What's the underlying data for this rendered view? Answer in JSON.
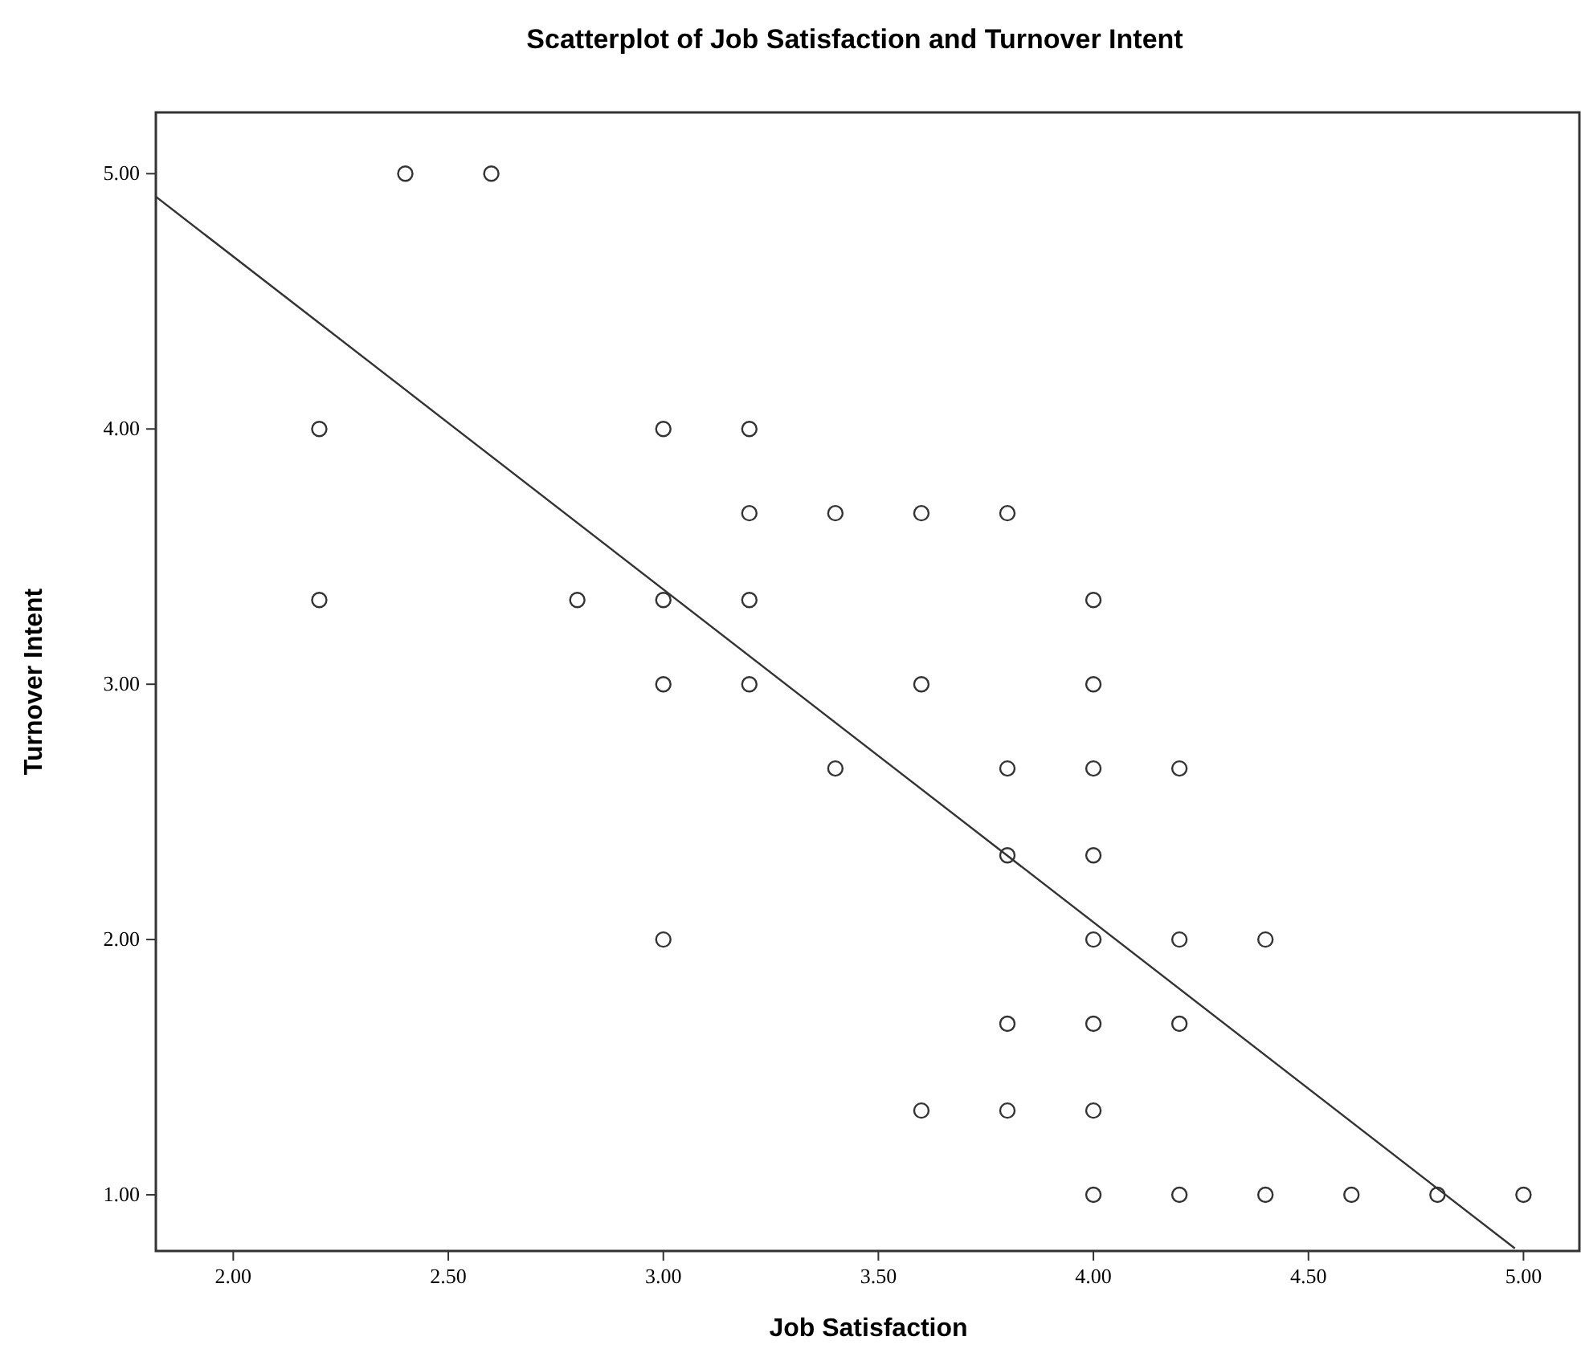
{
  "chart_data": {
    "type": "scatter",
    "title": "Scatterplot of Job Satisfaction and Turnover Intent",
    "xlabel": "Job Satisfaction",
    "ylabel": "Turnover Intent",
    "xlim": [
      1.82,
      5.13
    ],
    "ylim": [
      0.78,
      5.24
    ],
    "xticks": [
      {
        "value": 2,
        "label": "2.00"
      },
      {
        "value": 2.5,
        "label": "2.50"
      },
      {
        "value": 3,
        "label": "3.00"
      },
      {
        "value": 3.5,
        "label": "3.50"
      },
      {
        "value": 4,
        "label": "4.00"
      },
      {
        "value": 4.5,
        "label": "4.50"
      },
      {
        "value": 5,
        "label": "5.00"
      }
    ],
    "yticks": [
      {
        "value": 1,
        "label": "1.00"
      },
      {
        "value": 2,
        "label": "2.00"
      },
      {
        "value": 3,
        "label": "3.00"
      },
      {
        "value": 4,
        "label": "4.00"
      },
      {
        "value": 5,
        "label": "5.00"
      }
    ],
    "grid": false,
    "series": [
      {
        "color": "#333333",
        "marker": "circle",
        "x": [
          2.4,
          2.6,
          2.2,
          2.2,
          2.8,
          3.0,
          3.0,
          3.0,
          3.0,
          3.2,
          3.2,
          3.2,
          3.2,
          3.4,
          3.4,
          3.6,
          3.6,
          3.6,
          3.8,
          3.8,
          3.8,
          3.8,
          3.8,
          4.0,
          4.0,
          4.0,
          4.0,
          4.0,
          4.0,
          4.0,
          4.0,
          4.2,
          4.2,
          4.2,
          4.2,
          4.4,
          4.4,
          4.6,
          4.8,
          5.0
        ],
        "values": [
          5,
          5,
          4,
          3.33,
          3.33,
          4,
          3.33,
          3,
          2,
          4,
          3.67,
          3.33,
          3,
          3.67,
          2.67,
          3.67,
          3,
          1.33,
          3.67,
          2.67,
          2.33,
          1.67,
          1.33,
          3.33,
          3,
          2.67,
          2.33,
          2,
          1.67,
          1.33,
          1,
          2.67,
          2,
          1.67,
          1,
          2,
          1,
          1,
          1,
          1
        ]
      },
      {
        "type": "line",
        "color": "#333333",
        "line_style": "solid",
        "marker": "none",
        "x": [
          1.82,
          4.98
        ],
        "values": [
          4.91,
          0.79
        ]
      }
    ]
  }
}
